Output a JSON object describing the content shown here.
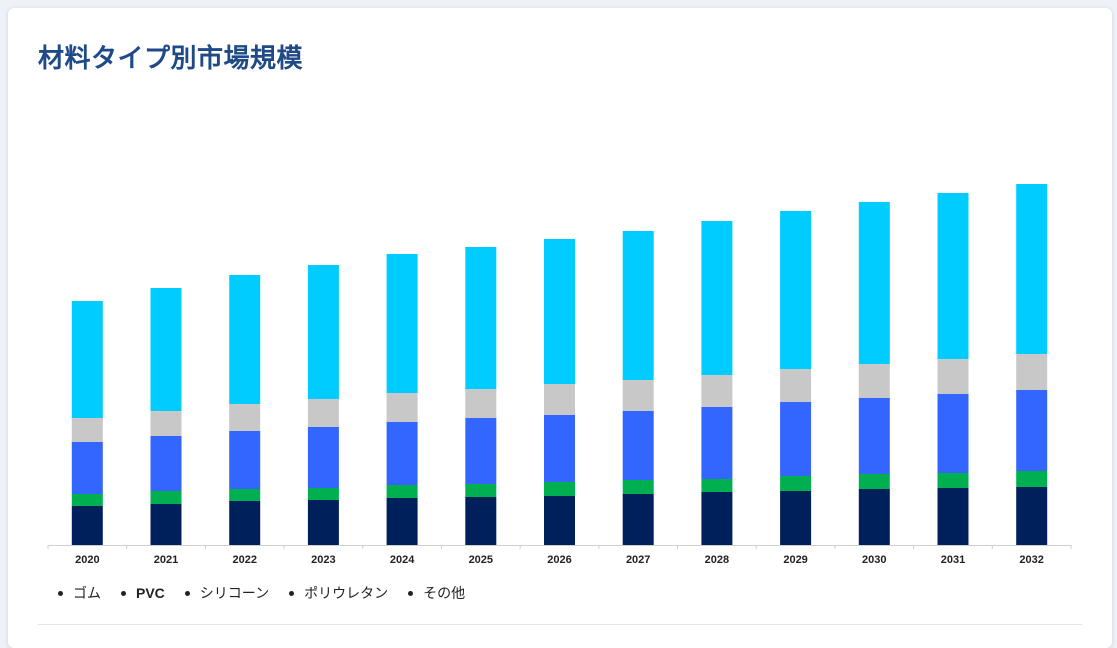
{
  "title": "材料タイプ別市場規模",
  "legend": [
    {
      "label": "ゴム",
      "key": "rubber"
    },
    {
      "label": "PVC",
      "key": "pvc"
    },
    {
      "label": "シリコーン",
      "key": "silicone"
    },
    {
      "label": "ポリウレタン",
      "key": "polyurethane"
    },
    {
      "label": "その他",
      "key": "other"
    }
  ],
  "colors": {
    "title": "#1f4a87",
    "rubber": "#00205c",
    "pvc": "#00b050",
    "silicone": "#3366ff",
    "polyurethane": "#c8c8c8",
    "other": "#00ccff",
    "axis": "#cfcfcf"
  },
  "chart_data": {
    "type": "bar",
    "stacked": true,
    "categories": [
      "2020",
      "2021",
      "2022",
      "2023",
      "2024",
      "2025",
      "2026",
      "2027",
      "2028",
      "2029",
      "2030",
      "2031",
      "2032"
    ],
    "series": [
      {
        "name": "ゴム",
        "values": [
          39,
          41,
          44,
          45,
          47,
          48,
          49,
          51,
          53,
          54,
          56,
          57,
          58
        ]
      },
      {
        "name": "PVC",
        "values": [
          12,
          13,
          12,
          12,
          13,
          13,
          14,
          14,
          13,
          15,
          15,
          15,
          16
        ]
      },
      {
        "name": "シリコーン",
        "values": [
          52,
          55,
          58,
          61,
          63,
          66,
          67,
          69,
          72,
          74,
          76,
          79,
          81
        ]
      },
      {
        "name": "ポリウレタン",
        "values": [
          24,
          25,
          27,
          28,
          29,
          29,
          31,
          31,
          32,
          33,
          34,
          35,
          36
        ]
      },
      {
        "name": "その他",
        "values": [
          117,
          123,
          129,
          134,
          139,
          142,
          145,
          149,
          154,
          158,
          162,
          166,
          170
        ]
      }
    ],
    "y_axis_visible": false,
    "grid": false,
    "legend_position": "bottom-left"
  }
}
